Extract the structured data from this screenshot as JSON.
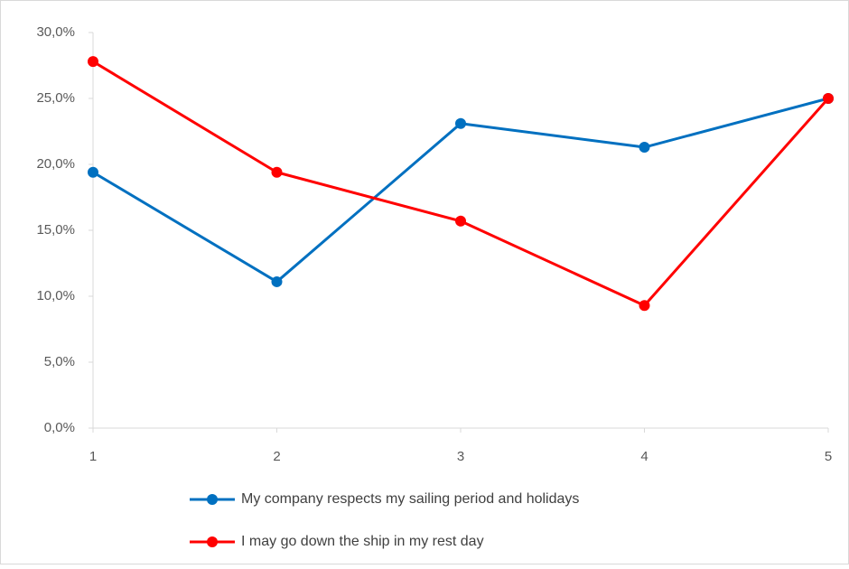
{
  "chart_data": {
    "type": "line",
    "x": [
      1,
      2,
      3,
      4,
      5
    ],
    "xlim": [
      1,
      5
    ],
    "xticks": [
      1,
      2,
      3,
      4,
      5
    ],
    "ylim": [
      0,
      30
    ],
    "yticks": [
      {
        "value": 0,
        "label": "0,0%"
      },
      {
        "value": 5,
        "label": "5,0%"
      },
      {
        "value": 10,
        "label": "10,0%"
      },
      {
        "value": 15,
        "label": "15,0%"
      },
      {
        "value": 20,
        "label": "20,0%"
      },
      {
        "value": 25,
        "label": "25,0%"
      },
      {
        "value": 30,
        "label": "30,0%"
      }
    ],
    "grid": false,
    "legend": "bottom",
    "series": [
      {
        "name": "My company respects my sailing period and holidays",
        "color": "#0070c0",
        "values": [
          19.4,
          11.1,
          23.1,
          21.3,
          25.0
        ]
      },
      {
        "name": "I may go down the ship in my rest day",
        "color": "#ff0000",
        "values": [
          27.8,
          19.4,
          15.7,
          9.3,
          25.0
        ]
      }
    ]
  }
}
